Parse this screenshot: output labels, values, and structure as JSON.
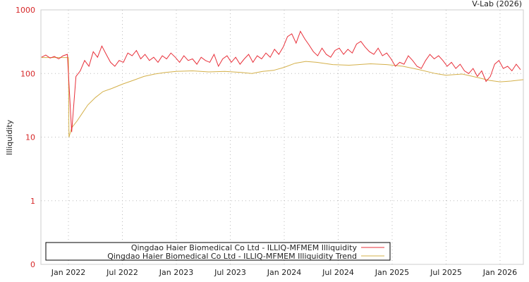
{
  "credit": "V-Lab (2026)",
  "chart_data": {
    "type": "line",
    "title": "",
    "xlabel": "",
    "ylabel": "Illiquidity",
    "yscale": "log",
    "ylim": [
      0.1,
      1000
    ],
    "xlim": [
      2021.745,
      2026.216
    ],
    "grid": true,
    "legend_placement": "bottom-left",
    "y_ticks": [
      {
        "value": 1000,
        "label": "1000"
      },
      {
        "value": 100,
        "label": "100"
      },
      {
        "value": 10,
        "label": "10"
      },
      {
        "value": 1,
        "label": "1"
      },
      {
        "value": 0.1,
        "label": "0"
      }
    ],
    "x_ticks": [
      {
        "value": 2022.0,
        "label": "Jan 2022"
      },
      {
        "value": 2022.5,
        "label": "Jul 2022"
      },
      {
        "value": 2023.0,
        "label": "Jan 2023"
      },
      {
        "value": 2023.5,
        "label": "Jul 2023"
      },
      {
        "value": 2024.0,
        "label": "Jan 2024"
      },
      {
        "value": 2024.5,
        "label": "Jul 2024"
      },
      {
        "value": 2025.0,
        "label": "Jan 2025"
      },
      {
        "value": 2025.5,
        "label": "Jul 2025"
      },
      {
        "value": 2026.0,
        "label": "Jan 2026"
      }
    ],
    "series": [
      {
        "name": "Qingdao Haier Biomedical Co Ltd - ILLIQ-MFMEM Illiquidity",
        "color": "#e8303a",
        "x_start": 2021.75,
        "x_step": 0.04,
        "values": [
          180,
          195,
          175,
          185,
          170,
          190,
          200,
          12,
          90,
          110,
          160,
          130,
          220,
          180,
          270,
          200,
          150,
          130,
          160,
          150,
          210,
          190,
          230,
          170,
          200,
          160,
          180,
          150,
          190,
          170,
          210,
          180,
          150,
          190,
          160,
          170,
          140,
          180,
          160,
          150,
          200,
          130,
          170,
          190,
          150,
          180,
          140,
          170,
          200,
          150,
          190,
          170,
          210,
          180,
          240,
          200,
          260,
          380,
          420,
          300,
          460,
          350,
          280,
          220,
          190,
          250,
          200,
          180,
          230,
          250,
          200,
          240,
          210,
          290,
          320,
          260,
          220,
          200,
          250,
          190,
          210,
          170,
          130,
          150,
          140,
          190,
          160,
          130,
          120,
          160,
          200,
          170,
          190,
          160,
          130,
          150,
          120,
          140,
          110,
          100,
          120,
          90,
          110,
          75,
          90,
          140,
          160,
          120,
          130,
          110,
          140,
          115
        ]
      },
      {
        "name": "Qingdao Haier Biomedical Co Ltd - ILLIQ-MFMEM Illiquidity Trend",
        "color": "#d4b04a",
        "points": [
          [
            2021.75,
            178
          ],
          [
            2022.0,
            178
          ],
          [
            2022.005,
            10
          ],
          [
            2022.03,
            14
          ],
          [
            2022.08,
            18
          ],
          [
            2022.13,
            24
          ],
          [
            2022.18,
            32
          ],
          [
            2022.25,
            42
          ],
          [
            2022.32,
            52
          ],
          [
            2022.4,
            58
          ],
          [
            2022.5,
            68
          ],
          [
            2022.6,
            78
          ],
          [
            2022.7,
            90
          ],
          [
            2022.8,
            98
          ],
          [
            2022.9,
            104
          ],
          [
            2023.0,
            108
          ],
          [
            2023.15,
            110
          ],
          [
            2023.3,
            106
          ],
          [
            2023.45,
            108
          ],
          [
            2023.6,
            104
          ],
          [
            2023.7,
            100
          ],
          [
            2023.8,
            108
          ],
          [
            2023.9,
            112
          ],
          [
            2024.0,
            125
          ],
          [
            2024.1,
            145
          ],
          [
            2024.2,
            155
          ],
          [
            2024.3,
            150
          ],
          [
            2024.45,
            138
          ],
          [
            2024.6,
            135
          ],
          [
            2024.8,
            142
          ],
          [
            2024.95,
            138
          ],
          [
            2025.1,
            130
          ],
          [
            2025.25,
            115
          ],
          [
            2025.4,
            100
          ],
          [
            2025.5,
            94
          ],
          [
            2025.65,
            98
          ],
          [
            2025.8,
            86
          ],
          [
            2025.9,
            78
          ],
          [
            2026.0,
            74
          ],
          [
            2026.1,
            76
          ],
          [
            2026.216,
            80
          ]
        ]
      }
    ]
  }
}
